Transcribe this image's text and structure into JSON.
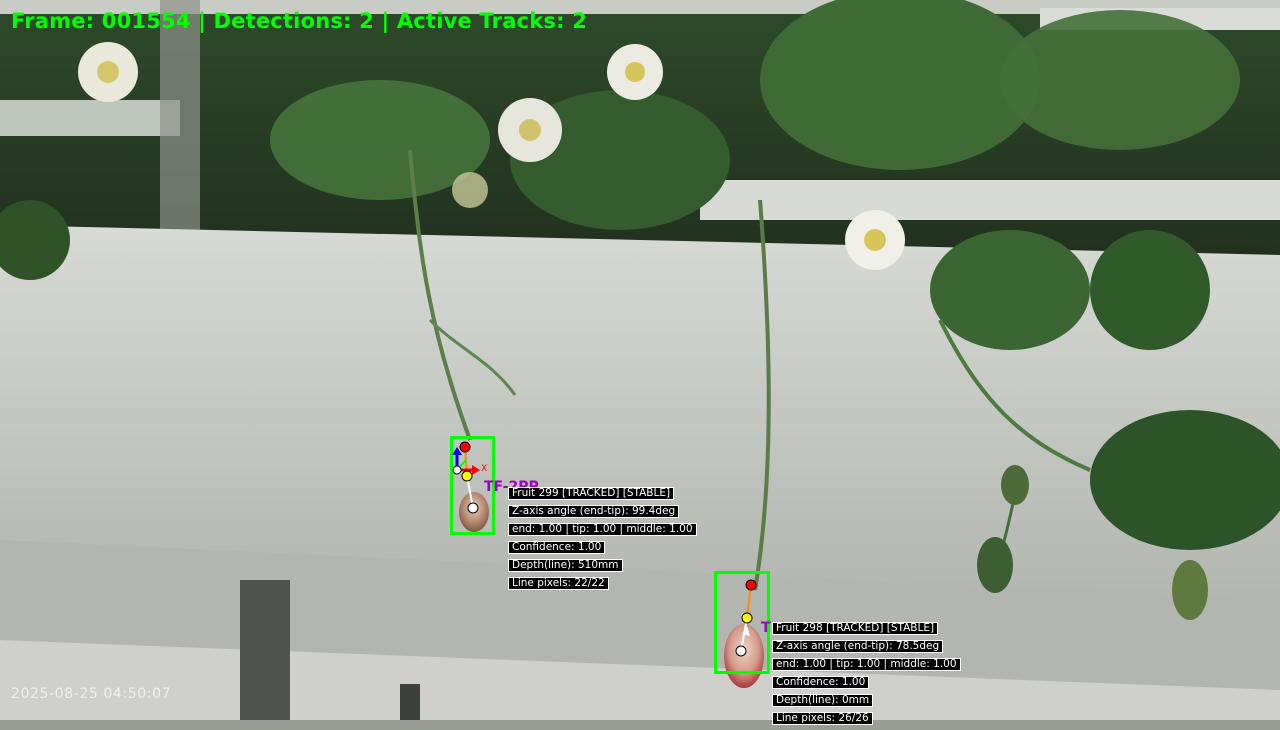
{
  "hud": {
    "frame_line": "Frame: 001554 | Detections: 2 | Active Tracks: 2"
  },
  "timestamp": "2025-08-25 04:50:07",
  "colors": {
    "hud_text": "#00ff00",
    "bbox": "#00ff00",
    "track_tag": "#a000c8",
    "end_point": "#ff0000",
    "middle_point": "#ffff00",
    "tip_point": "#ffffff",
    "axis_x": "#ff0000",
    "axis_y": "#0000ff",
    "axis_z": "#00ff00"
  },
  "detections": [
    {
      "track_tag": "TF-2PP",
      "axis_label_x": "X",
      "info": [
        "Fruit 299 [TRACKED] [STABLE]",
        "Z-axis angle (end-tip): 99.4deg",
        "end: 1.00 | tip: 1.00 | middle: 1.00",
        "Confidence: 1.00",
        "Depth(line): 510mm",
        "Line pixels: 22/22"
      ]
    },
    {
      "track_tag": "T",
      "info": [
        "Fruit 298 [TRACKED] [STABLE]",
        "Z-axis angle (end-tip): 78.5deg",
        "end: 1.00 | tip: 1.00 | middle: 1.00",
        "Confidence: 1.00",
        "Depth(line): 0mm",
        "Line pixels: 26/26"
      ]
    }
  ]
}
